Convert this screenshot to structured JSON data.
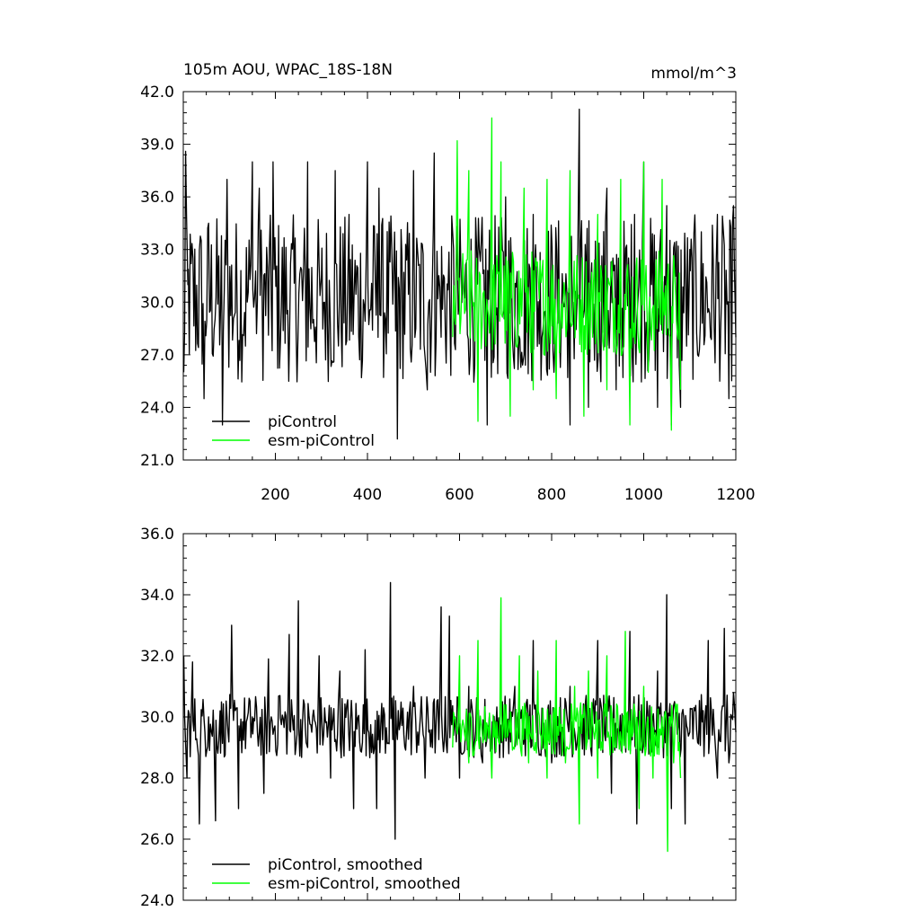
{
  "chart_data": [
    {
      "type": "line",
      "title": "105m AOU, WPAC_18S-18N",
      "units_label": "mmol/m^3",
      "xlim": [
        0,
        1200
      ],
      "ylim": [
        21,
        42
      ],
      "x_tick_labels": [
        "200",
        "400",
        "600",
        "800",
        "1000",
        "1200"
      ],
      "y_tick_labels": [
        "21.0",
        "24.0",
        "27.0",
        "30.0",
        "33.0",
        "36.0",
        "39.0",
        "42.0"
      ],
      "series": [
        {
          "name": "piControl",
          "color": "#000000",
          "x_range": [
            1,
            1200
          ],
          "mean": 30.2,
          "min": 22.2,
          "max": 41.0,
          "x": [
            1,
            5,
            10,
            45,
            55,
            85,
            95,
            150,
            165,
            195,
            270,
            300,
            330,
            360,
            400,
            425,
            465,
            500,
            530,
            545,
            560,
            585,
            660,
            700,
            740,
            760,
            840,
            860,
            880,
            920,
            940,
            980,
            1000,
            1030,
            1050,
            1060,
            1080,
            1100,
            1160,
            1185,
            1195,
            1200
          ],
          "y": [
            26.0,
            38.6,
            31.0,
            24.5,
            34.5,
            23.0,
            37.0,
            38.0,
            36.5,
            38.0,
            38.0,
            31.5,
            37.5,
            35.0,
            38.0,
            36.5,
            22.2,
            37.5,
            25.0,
            38.5,
            28.0,
            34.0,
            23.0,
            36.0,
            27.0,
            35.0,
            23.0,
            41.0,
            24.0,
            36.5,
            25.0,
            35.0,
            38.0,
            24.0,
            35.5,
            23.0,
            24.0,
            33.0,
            35.0,
            24.5,
            35.5,
            28.0
          ]
        },
        {
          "name": "esm-piControl",
          "color": "#00ff00",
          "x_range": [
            585,
            1080
          ],
          "mean": 30.0,
          "min": 22.7,
          "max": 40.5,
          "x": [
            585,
            595,
            620,
            640,
            670,
            690,
            710,
            740,
            760,
            790,
            810,
            840,
            870,
            900,
            920,
            950,
            970,
            1000,
            1010,
            1040,
            1060,
            1070,
            1080
          ],
          "y": [
            28.0,
            39.2,
            37.5,
            23.2,
            40.5,
            38.0,
            23.5,
            36.5,
            25.0,
            37.0,
            24.5,
            37.5,
            23.5,
            35.0,
            25.0,
            37.0,
            23.0,
            38.0,
            26.0,
            37.0,
            22.7,
            30.0,
            25.0
          ]
        }
      ],
      "legend": {
        "position": "bottom-left",
        "entries": [
          "piControl",
          "esm-piControl"
        ]
      }
    },
    {
      "type": "line",
      "xlim": [
        0,
        1200
      ],
      "ylim": [
        24,
        36
      ],
      "y_tick_labels": [
        "24.0",
        "26.0",
        "28.0",
        "30.0",
        "32.0",
        "34.0",
        "36.0"
      ],
      "series": [
        {
          "name": "piControl, smoothed",
          "color": "#000000",
          "x_range": [
            1,
            1200
          ],
          "mean": 29.7,
          "min": 26.0,
          "max": 34.4,
          "x": [
            1,
            8,
            20,
            35,
            55,
            70,
            80,
            105,
            120,
            150,
            175,
            185,
            210,
            230,
            250,
            270,
            295,
            320,
            340,
            370,
            395,
            420,
            450,
            460,
            500,
            525,
            560,
            578,
            590,
            600,
            620,
            650,
            680,
            720,
            760,
            800,
            840,
            900,
            930,
            970,
            985,
            1030,
            1050,
            1060,
            1090,
            1100,
            1140,
            1160,
            1175,
            1185,
            1195,
            1200
          ],
          "y": [
            32.0,
            28.0,
            31.8,
            26.5,
            30.0,
            26.6,
            30.2,
            33.0,
            27.0,
            30.0,
            27.5,
            31.9,
            30.7,
            32.7,
            33.8,
            29.0,
            32.0,
            28.0,
            31.5,
            27.0,
            32.2,
            27.0,
            34.4,
            26.0,
            31.0,
            28.0,
            33.6,
            33.3,
            30.0,
            28.0,
            31.0,
            28.5,
            30.0,
            31.0,
            32.5,
            28.5,
            31.0,
            32.5,
            27.5,
            32.8,
            26.5,
            31.5,
            34.0,
            27.0,
            26.5,
            29.5,
            32.5,
            28.0,
            32.9,
            28.5,
            30.8,
            29.5
          ]
        },
        {
          "name": "esm-piControl, smoothed",
          "color": "#00ff00",
          "x_range": [
            585,
            1080
          ],
          "mean": 29.6,
          "min": 25.6,
          "max": 33.9,
          "x": [
            585,
            600,
            620,
            640,
            670,
            690,
            710,
            730,
            750,
            770,
            790,
            810,
            830,
            850,
            860,
            880,
            900,
            920,
            940,
            960,
            990,
            1000,
            1020,
            1040,
            1052,
            1065,
            1080
          ],
          "y": [
            29.0,
            32.0,
            28.5,
            32.5,
            28.0,
            33.9,
            29.5,
            32.0,
            28.5,
            31.5,
            28.0,
            32.5,
            28.5,
            31.0,
            26.5,
            31.5,
            28.0,
            32.0,
            29.0,
            32.8,
            27.0,
            31.0,
            28.0,
            30.0,
            25.6,
            28.5,
            28.0
          ]
        }
      ],
      "legend": {
        "position": "bottom-left",
        "entries": [
          "piControl, smoothed",
          "esm-piControl, smoothed"
        ]
      }
    }
  ]
}
